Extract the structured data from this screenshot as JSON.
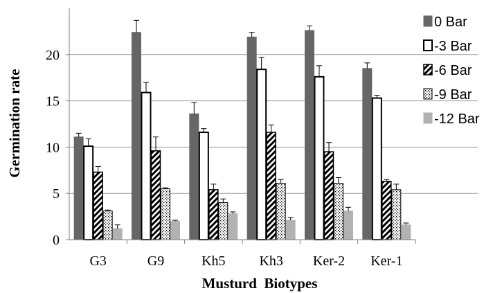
{
  "chart_data": {
    "type": "bar",
    "title": "",
    "xlabel": "Musturd  Biotypes",
    "ylabel": "Germination rate",
    "categories": [
      "G3",
      "G9",
      "Kh5",
      "Kh3",
      "Ker-2",
      "Ker-1"
    ],
    "ylim": [
      0,
      25
    ],
    "yticks": [
      0,
      5,
      10,
      15,
      20
    ],
    "grid": "horizontal",
    "legend_position": "right",
    "series": [
      {
        "name": "0 Bar",
        "pattern": "solid-dark",
        "values": [
          11.1,
          22.4,
          13.6,
          21.9,
          22.6,
          18.5
        ],
        "errors": [
          0.4,
          1.3,
          1.2,
          0.5,
          0.5,
          0.6
        ]
      },
      {
        "name": "-3 Bar",
        "pattern": "white",
        "values": [
          10.1,
          15.9,
          11.6,
          18.4,
          17.6,
          15.3
        ],
        "errors": [
          0.8,
          1.1,
          0.4,
          1.3,
          1.2,
          0.3
        ]
      },
      {
        "name": "-6 Bar",
        "pattern": "diagonal",
        "values": [
          7.3,
          9.6,
          5.4,
          11.6,
          9.5,
          6.3
        ],
        "errors": [
          0.6,
          1.5,
          0.6,
          0.8,
          1.0,
          0.2
        ]
      },
      {
        "name": "-9 Bar",
        "pattern": "dotted",
        "values": [
          3.1,
          5.5,
          4.0,
          6.1,
          6.1,
          5.4
        ],
        "errors": [
          0.1,
          0.1,
          0.4,
          0.4,
          0.6,
          0.6
        ]
      },
      {
        "name": "-12 Bar",
        "pattern": "solid-light",
        "values": [
          1.2,
          2.0,
          2.8,
          2.1,
          3.1,
          1.6
        ],
        "errors": [
          0.4,
          0.1,
          0.2,
          0.3,
          0.4,
          0.2
        ]
      }
    ]
  },
  "colors": {
    "dark": "#666666",
    "light": "#b2b2b2",
    "grid": "#999999",
    "axis": "#7f7f7f",
    "border": "#000000"
  }
}
